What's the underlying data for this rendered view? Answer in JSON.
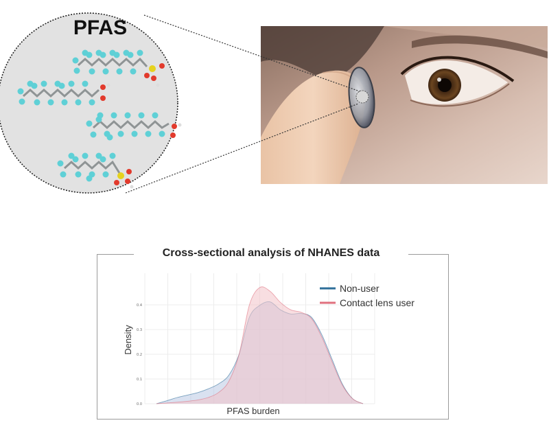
{
  "illustration": {
    "molecule_group_label": "PFAS",
    "icons": [
      "pfas-molecule-icon",
      "eye-icon",
      "contact-lens-icon",
      "fingertip-icon"
    ]
  },
  "chart_data": {
    "type": "area",
    "title": "Cross-sectional analysis of NHANES data",
    "xlabel": "PFAS burden",
    "ylabel": "Density",
    "y_ticks": [
      "0.0",
      "0.1",
      "0.2",
      "0.3",
      "0.4"
    ],
    "ylim": [
      0,
      0.5
    ],
    "xlim": [
      0,
      1
    ],
    "grid": true,
    "legend_position": "top-right",
    "series": [
      {
        "name": "Non-user",
        "color": "#2e6e99",
        "fill": "#b9c9e3",
        "x": [
          0.0,
          0.05,
          0.1,
          0.15,
          0.2,
          0.25,
          0.3,
          0.35,
          0.4,
          0.45,
          0.5,
          0.55,
          0.6,
          0.65,
          0.7,
          0.75,
          0.8,
          0.85,
          0.9,
          0.95,
          1.0
        ],
        "y": [
          0.0,
          0.012,
          0.025,
          0.035,
          0.045,
          0.06,
          0.08,
          0.115,
          0.2,
          0.35,
          0.398,
          0.412,
          0.38,
          0.363,
          0.365,
          0.35,
          0.28,
          0.18,
          0.08,
          0.02,
          0.0
        ]
      },
      {
        "name": "Contact lens user",
        "color": "#e0707e",
        "fill": "#f2c2c9",
        "x": [
          0.0,
          0.05,
          0.1,
          0.15,
          0.2,
          0.25,
          0.3,
          0.35,
          0.4,
          0.45,
          0.5,
          0.55,
          0.6,
          0.65,
          0.7,
          0.75,
          0.8,
          0.85,
          0.9,
          0.95,
          1.0
        ],
        "y": [
          0.0,
          0.003,
          0.006,
          0.01,
          0.015,
          0.025,
          0.045,
          0.09,
          0.2,
          0.4,
          0.47,
          0.455,
          0.41,
          0.38,
          0.37,
          0.345,
          0.27,
          0.17,
          0.075,
          0.02,
          0.0
        ]
      }
    ]
  }
}
